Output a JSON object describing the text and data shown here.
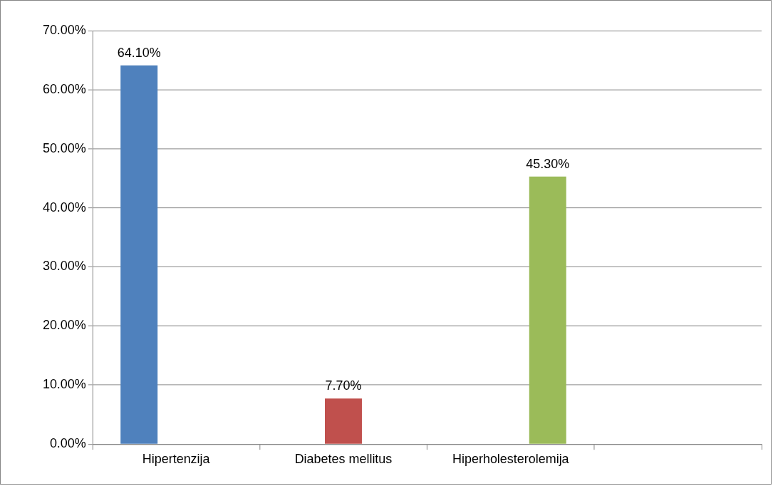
{
  "chart_data": {
    "type": "bar",
    "categories": [
      "Hipertenzija",
      "Diabetes mellitus",
      "Hiperholesterolemija",
      null
    ],
    "series": [
      {
        "color": "#4f81bd",
        "values": [
          64.1,
          null,
          null,
          null
        ],
        "value_labels": [
          "64.10%",
          null,
          null,
          null
        ]
      },
      {
        "color": "#c0504d",
        "values": [
          null,
          7.7,
          null,
          null
        ],
        "value_labels": [
          null,
          "7.70%",
          null,
          null
        ]
      },
      {
        "color": "#9bbb59",
        "values": [
          null,
          null,
          45.3,
          null
        ],
        "value_labels": [
          null,
          null,
          "45.30%",
          null
        ]
      }
    ],
    "ylim": [
      0,
      70
    ],
    "yticks": [
      {
        "value": 0,
        "label": "0.00%"
      },
      {
        "value": 10,
        "label": "10.00%"
      },
      {
        "value": 20,
        "label": "20.00%"
      },
      {
        "value": 30,
        "label": "30.00%"
      },
      {
        "value": 40,
        "label": "40.00%"
      },
      {
        "value": 50,
        "label": "50.00%"
      },
      {
        "value": 60,
        "label": "60.00%"
      },
      {
        "value": 70,
        "label": "70.00%"
      }
    ],
    "grid": "y",
    "legend": false
  }
}
